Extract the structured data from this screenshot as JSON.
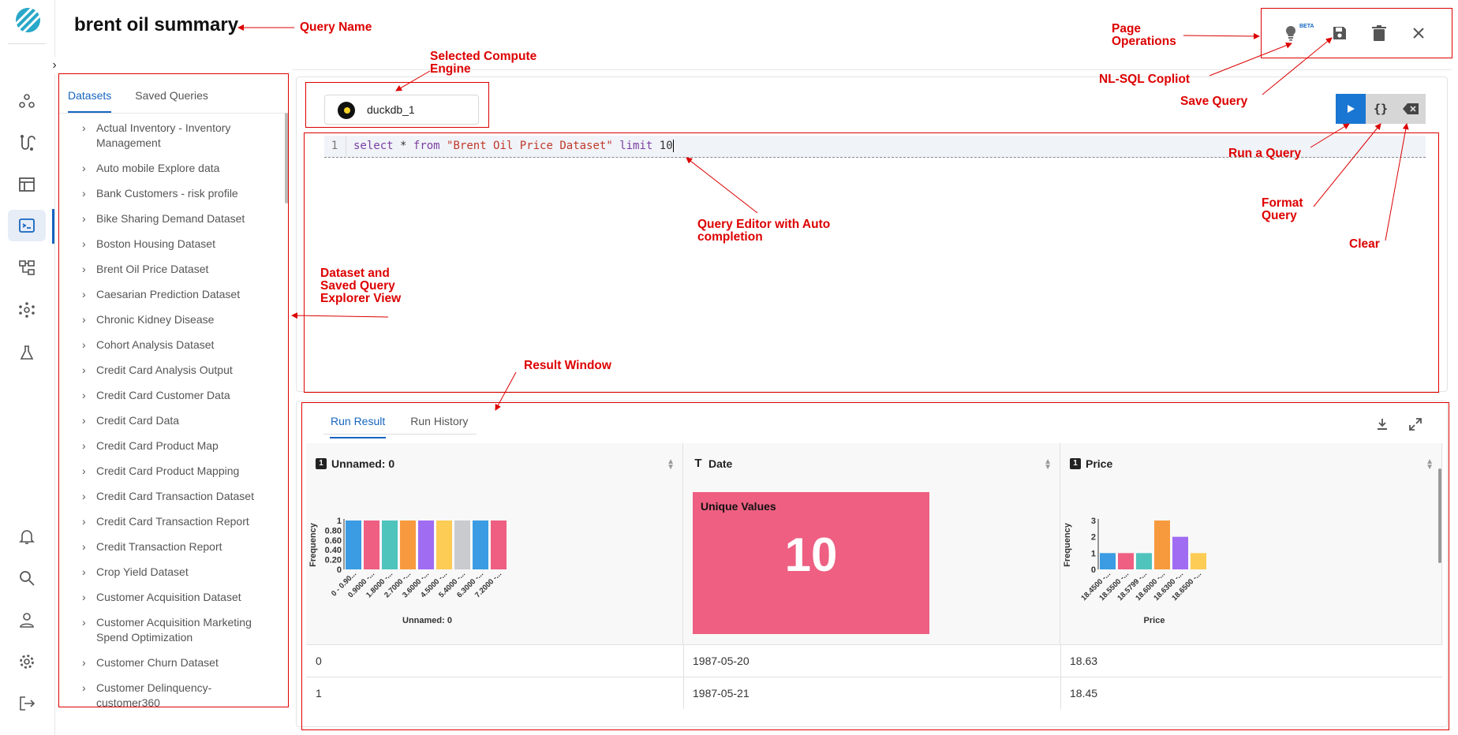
{
  "query": {
    "title": "brent oil summary"
  },
  "ops": {
    "beta_label": "BETA"
  },
  "explorer": {
    "tabs": [
      "Datasets",
      "Saved Queries"
    ],
    "items": [
      "Actual Inventory - Inventory Management",
      "Auto mobile Explore data",
      "Bank Customers - risk profile",
      "Bike Sharing Demand Dataset",
      "Boston Housing Dataset",
      "Brent Oil Price Dataset",
      "Caesarian Prediction Dataset",
      "Chronic Kidney Disease",
      "Cohort Analysis Dataset",
      "Credit Card Analysis Output",
      "Credit Card Customer Data",
      "Credit Card Data",
      "Credit Card Product Map",
      "Credit Card Product Mapping",
      "Credit Card Transaction Dataset",
      "Credit Card Transaction Report",
      "Credit Transaction Report",
      "Crop Yield Dataset",
      "Customer Acquisition Dataset",
      "Customer Acquisition Marketing Spend Optimization",
      "Customer Churn Dataset",
      "Customer Delinquency-customer360"
    ]
  },
  "engine": {
    "name": "duckdb_1"
  },
  "editor": {
    "line_number": "1",
    "kw1": "select",
    "star": "*",
    "kw2": "from",
    "table": "\"Brent Oil Price Dataset\"",
    "kw3": "limit",
    "limit": "10"
  },
  "result": {
    "tabs": [
      "Run Result",
      "Run History"
    ],
    "columns": [
      {
        "name": "Unnamed: 0",
        "type_icon": "1"
      },
      {
        "name": "Date",
        "type_icon": "T"
      },
      {
        "name": "Price",
        "type_icon": "1"
      }
    ],
    "unique_values_label": "Unique Values",
    "unique_values_count": "10",
    "rows": [
      [
        "0",
        "1987-05-20",
        "18.63"
      ],
      [
        "1",
        "1987-05-21",
        "18.45"
      ]
    ]
  },
  "chart_data": [
    {
      "type": "bar",
      "xlabel": "Unnamed: 0",
      "ylabel": "Frequency",
      "categories": [
        "0 - 0.90...",
        "0.9000 -...",
        "1.8000 -...",
        "2.7000 -...",
        "3.6000 -...",
        "4.5000 -...",
        "5.4000 -...",
        "6.3000 -...",
        "7.2000 -..."
      ],
      "values": [
        1,
        1,
        1,
        1,
        1,
        1,
        1,
        1,
        1
      ],
      "yticks": [
        "0",
        "0.20",
        "0.40",
        "0.60",
        "0.80",
        "1"
      ],
      "ylim": [
        0,
        1
      ],
      "colors": [
        "#3b9be3",
        "#ee5f82",
        "#4fc4bd",
        "#f79a3e",
        "#a06cf2",
        "#fdcc55",
        "#c9cbcf",
        "#3b9be3",
        "#ee5f82"
      ]
    },
    {
      "type": "bar",
      "xlabel": "Price",
      "ylabel": "Frequency",
      "categories": [
        "18.4500 -...",
        "18.5500 -...",
        "18.5799 -...",
        "18.6000 -...",
        "18.6300 -...",
        "18.6500 -..."
      ],
      "values": [
        1,
        1,
        1,
        3,
        2,
        1
      ],
      "yticks": [
        "0",
        "1",
        "2",
        "3"
      ],
      "ylim": [
        0,
        3
      ],
      "colors": [
        "#3b9be3",
        "#ee5f82",
        "#4fc4bd",
        "#f79a3e",
        "#a06cf2",
        "#fdcc55"
      ]
    }
  ],
  "annotations": {
    "query_name": "Query Name",
    "compute_engine": "Selected Compute Engine",
    "page_operations": "Page Operations",
    "nl_sql": "NL-SQL Copliot",
    "save_query": "Save Query",
    "run_query": "Run a Query",
    "format_query": "Format Query",
    "clear": "Clear",
    "query_editor": "Query Editor with Auto completion",
    "dataset_explorer": "Dataset and Saved Query Explorer View",
    "result_window": "Result Window"
  }
}
